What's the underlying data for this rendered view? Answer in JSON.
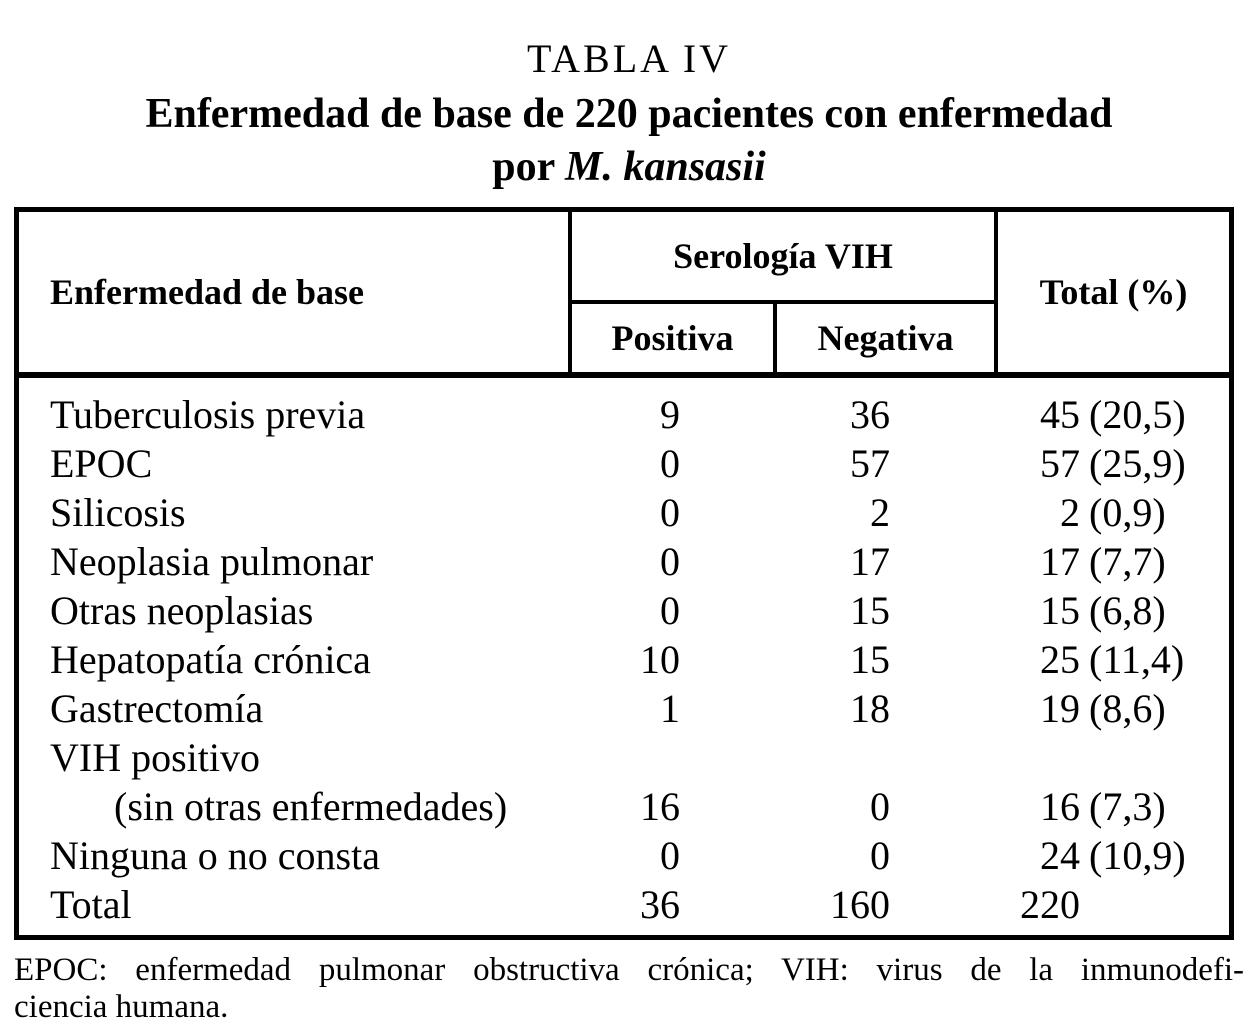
{
  "page": {
    "background": "#ffffff",
    "text_color": "#000000"
  },
  "title": {
    "label": "TABLA IV",
    "line1": "Enfermedad de base de 220 pacientes con enfermedad",
    "line2_prefix": "por",
    "line2_italic": "M. kansasii"
  },
  "table": {
    "header": {
      "col_enfermedad": "Enfermedad de base",
      "group_serologia": "Serología VIH",
      "col_positiva": "Positiva",
      "col_negativa": "Negativa",
      "col_total": "Total (%)"
    },
    "rows": [
      {
        "label": "Tuberculosis previa",
        "indent": false,
        "pos": "9",
        "neg": "36",
        "total": "45",
        "pct": "(20,5)"
      },
      {
        "label": "EPOC",
        "indent": false,
        "pos": "0",
        "neg": "57",
        "total": "57",
        "pct": "(25,9)"
      },
      {
        "label": "Silicosis",
        "indent": false,
        "pos": "0",
        "neg": "2",
        "total": "2",
        "pct": "(0,9)"
      },
      {
        "label": "Neoplasia pulmonar",
        "indent": false,
        "pos": "0",
        "neg": "17",
        "total": "17",
        "pct": "(7,7)"
      },
      {
        "label": "Otras neoplasias",
        "indent": false,
        "pos": "0",
        "neg": "15",
        "total": "15",
        "pct": "(6,8)"
      },
      {
        "label": "Hepatopatía crónica",
        "indent": false,
        "pos": "10",
        "neg": "15",
        "total": "25",
        "pct": "(11,4)"
      },
      {
        "label": "Gastrectomía",
        "indent": false,
        "pos": "1",
        "neg": "18",
        "total": "19",
        "pct": "(8,6)"
      },
      {
        "label": "VIH positivo",
        "indent": false,
        "pos": "",
        "neg": "",
        "total": "",
        "pct": ""
      },
      {
        "label": "(sin otras enfermedades)",
        "indent": true,
        "pos": "16",
        "neg": "0",
        "total": "16",
        "pct": "(7,3)"
      },
      {
        "label": "Ninguna o no consta",
        "indent": false,
        "pos": "0",
        "neg": "0",
        "total": "24",
        "pct": "(10,9)"
      },
      {
        "label": "Total",
        "indent": false,
        "pos": "36",
        "neg": "160",
        "total": "220",
        "pct": ""
      }
    ]
  },
  "footnote": {
    "line1": "EPOC: enfermedad pulmonar obstructiva crónica; VIH: virus de la inmunodefi-",
    "line2": "ciencia humana."
  }
}
